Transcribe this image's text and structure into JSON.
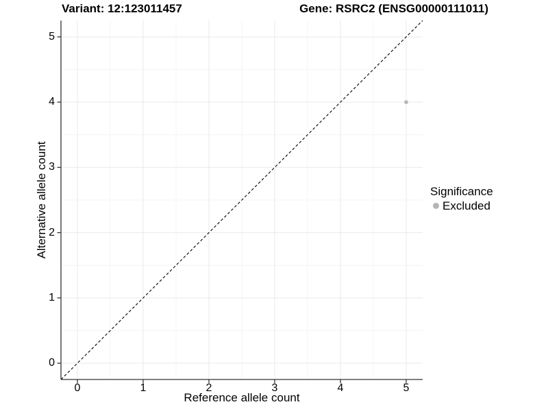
{
  "header": {
    "variant_title": "Variant: 12:123011457",
    "gene_title": "Gene: RSRC2 (ENSG00000111011)"
  },
  "chart_data": {
    "type": "scatter",
    "title": "Variant: 12:123011457    Gene: RSRC2 (ENSG00000111011)",
    "xlabel": "Reference allele count",
    "ylabel": "Alternative allele count",
    "xlim": [
      -0.25,
      5.25
    ],
    "ylim": [
      -0.25,
      5.25
    ],
    "xticks": [
      0,
      1,
      2,
      3,
      4,
      5
    ],
    "yticks": [
      0,
      1,
      2,
      3,
      4,
      5
    ],
    "xticks_minor": [
      0.5,
      1.5,
      2.5,
      3.5,
      4.5
    ],
    "yticks_minor": [
      0.5,
      1.5,
      2.5,
      3.5,
      4.5
    ],
    "grid": "major and minor, on",
    "points": [
      {
        "x": 5,
        "y": 4,
        "series": "Excluded"
      }
    ],
    "reference_line": {
      "kind": "identity y=x",
      "x1": -0.25,
      "y1": -0.25,
      "x2": 5.25,
      "y2": 5.25,
      "style": "dashed",
      "color": "#000000"
    },
    "legend": {
      "title": "Significance",
      "position": "right",
      "entries": [
        {
          "label": "Excluded",
          "color": "#b5b5b5"
        }
      ]
    },
    "colors": {
      "point": "#b8b8b8",
      "grid_major": "#e9e9e9",
      "grid_minor": "#f4f4f4",
      "axis": "#333333",
      "text": "#000000",
      "background": "#ffffff"
    }
  }
}
